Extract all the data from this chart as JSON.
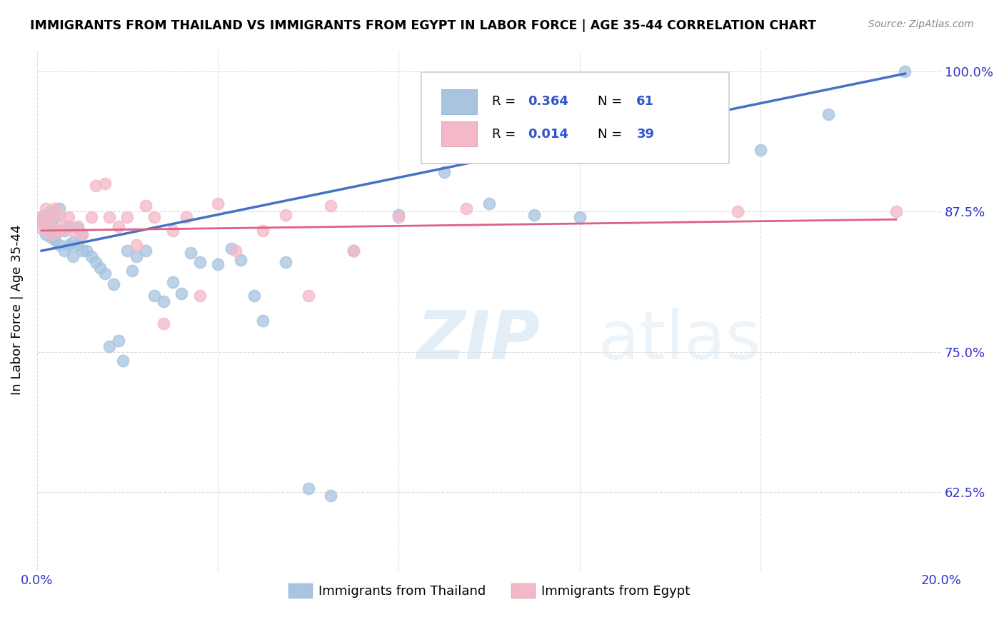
{
  "title": "IMMIGRANTS FROM THAILAND VS IMMIGRANTS FROM EGYPT IN LABOR FORCE | AGE 35-44 CORRELATION CHART",
  "source": "Source: ZipAtlas.com",
  "ylabel": "In Labor Force | Age 35-44",
  "xlim": [
    0.0,
    0.2
  ],
  "ylim": [
    0.555,
    1.02
  ],
  "xticks": [
    0.0,
    0.04,
    0.08,
    0.12,
    0.16,
    0.2
  ],
  "xticklabels": [
    "0.0%",
    "",
    "",
    "",
    "",
    "20.0%"
  ],
  "yticks": [
    0.625,
    0.75,
    0.875,
    1.0
  ],
  "yticklabels": [
    "62.5%",
    "75.0%",
    "87.5%",
    "100.0%"
  ],
  "legend_label1": "Immigrants from Thailand",
  "legend_label2": "Immigrants from Egypt",
  "thailand_color": "#a8c4e0",
  "egypt_color": "#f4b8c8",
  "thailand_line_color": "#4472c4",
  "egypt_line_color": "#e06080",
  "thailand_x": [
    0.001,
    0.001,
    0.002,
    0.002,
    0.002,
    0.003,
    0.003,
    0.003,
    0.003,
    0.004,
    0.004,
    0.005,
    0.005,
    0.005,
    0.006,
    0.006,
    0.007,
    0.007,
    0.008,
    0.008,
    0.009,
    0.009,
    0.01,
    0.01,
    0.011,
    0.012,
    0.013,
    0.014,
    0.015,
    0.016,
    0.017,
    0.018,
    0.019,
    0.02,
    0.021,
    0.022,
    0.024,
    0.026,
    0.028,
    0.03,
    0.032,
    0.034,
    0.036,
    0.04,
    0.043,
    0.045,
    0.048,
    0.05,
    0.055,
    0.06,
    0.065,
    0.07,
    0.08,
    0.09,
    0.1,
    0.11,
    0.12,
    0.14,
    0.16,
    0.175,
    0.192
  ],
  "thailand_y": [
    0.87,
    0.865,
    0.872,
    0.86,
    0.855,
    0.875,
    0.865,
    0.86,
    0.852,
    0.87,
    0.85,
    0.878,
    0.858,
    0.845,
    0.858,
    0.84,
    0.862,
    0.845,
    0.848,
    0.835,
    0.86,
    0.845,
    0.855,
    0.84,
    0.84,
    0.835,
    0.83,
    0.825,
    0.82,
    0.755,
    0.81,
    0.76,
    0.742,
    0.84,
    0.822,
    0.835,
    0.84,
    0.8,
    0.795,
    0.812,
    0.802,
    0.838,
    0.83,
    0.828,
    0.842,
    0.832,
    0.8,
    0.778,
    0.83,
    0.628,
    0.622,
    0.84,
    0.872,
    0.91,
    0.882,
    0.872,
    0.87,
    0.962,
    0.93,
    0.962,
    1.0
  ],
  "egypt_x": [
    0.001,
    0.001,
    0.002,
    0.002,
    0.003,
    0.003,
    0.004,
    0.004,
    0.005,
    0.005,
    0.006,
    0.007,
    0.008,
    0.009,
    0.01,
    0.012,
    0.013,
    0.015,
    0.016,
    0.018,
    0.02,
    0.022,
    0.024,
    0.026,
    0.028,
    0.03,
    0.033,
    0.036,
    0.04,
    0.044,
    0.05,
    0.055,
    0.06,
    0.065,
    0.07,
    0.08,
    0.095,
    0.155,
    0.19
  ],
  "egypt_y": [
    0.87,
    0.86,
    0.878,
    0.865,
    0.87,
    0.855,
    0.878,
    0.86,
    0.872,
    0.858,
    0.862,
    0.87,
    0.858,
    0.862,
    0.855,
    0.87,
    0.898,
    0.9,
    0.87,
    0.862,
    0.87,
    0.845,
    0.88,
    0.87,
    0.775,
    0.858,
    0.87,
    0.8,
    0.882,
    0.84,
    0.858,
    0.872,
    0.8,
    0.88,
    0.84,
    0.87,
    0.878,
    0.875,
    0.875
  ],
  "thailand_trend_x": [
    0.001,
    0.192
  ],
  "thailand_trend_y": [
    0.84,
    0.998
  ],
  "egypt_trend_x": [
    0.001,
    0.19
  ],
  "egypt_trend_y": [
    0.858,
    0.868
  ]
}
